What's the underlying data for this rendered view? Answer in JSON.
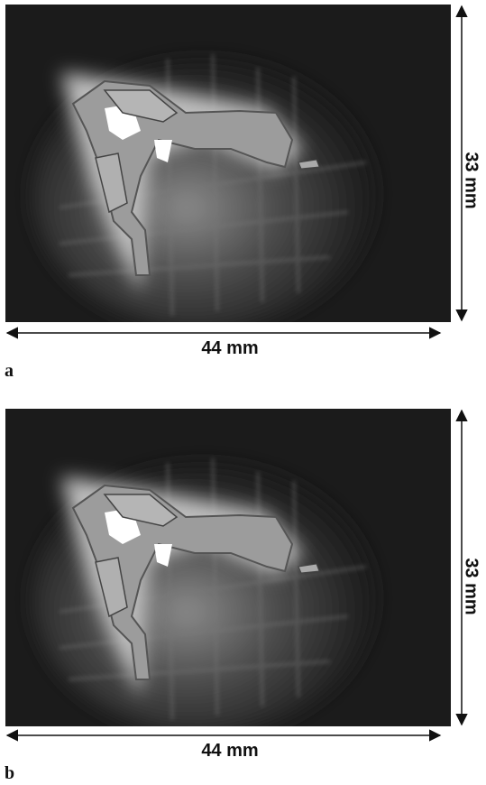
{
  "panels": [
    {
      "label": "a",
      "width_label": "44 mm",
      "height_label": "33 mm"
    },
    {
      "label": "b",
      "width_label": "44 mm",
      "height_label": "33 mm"
    }
  ]
}
